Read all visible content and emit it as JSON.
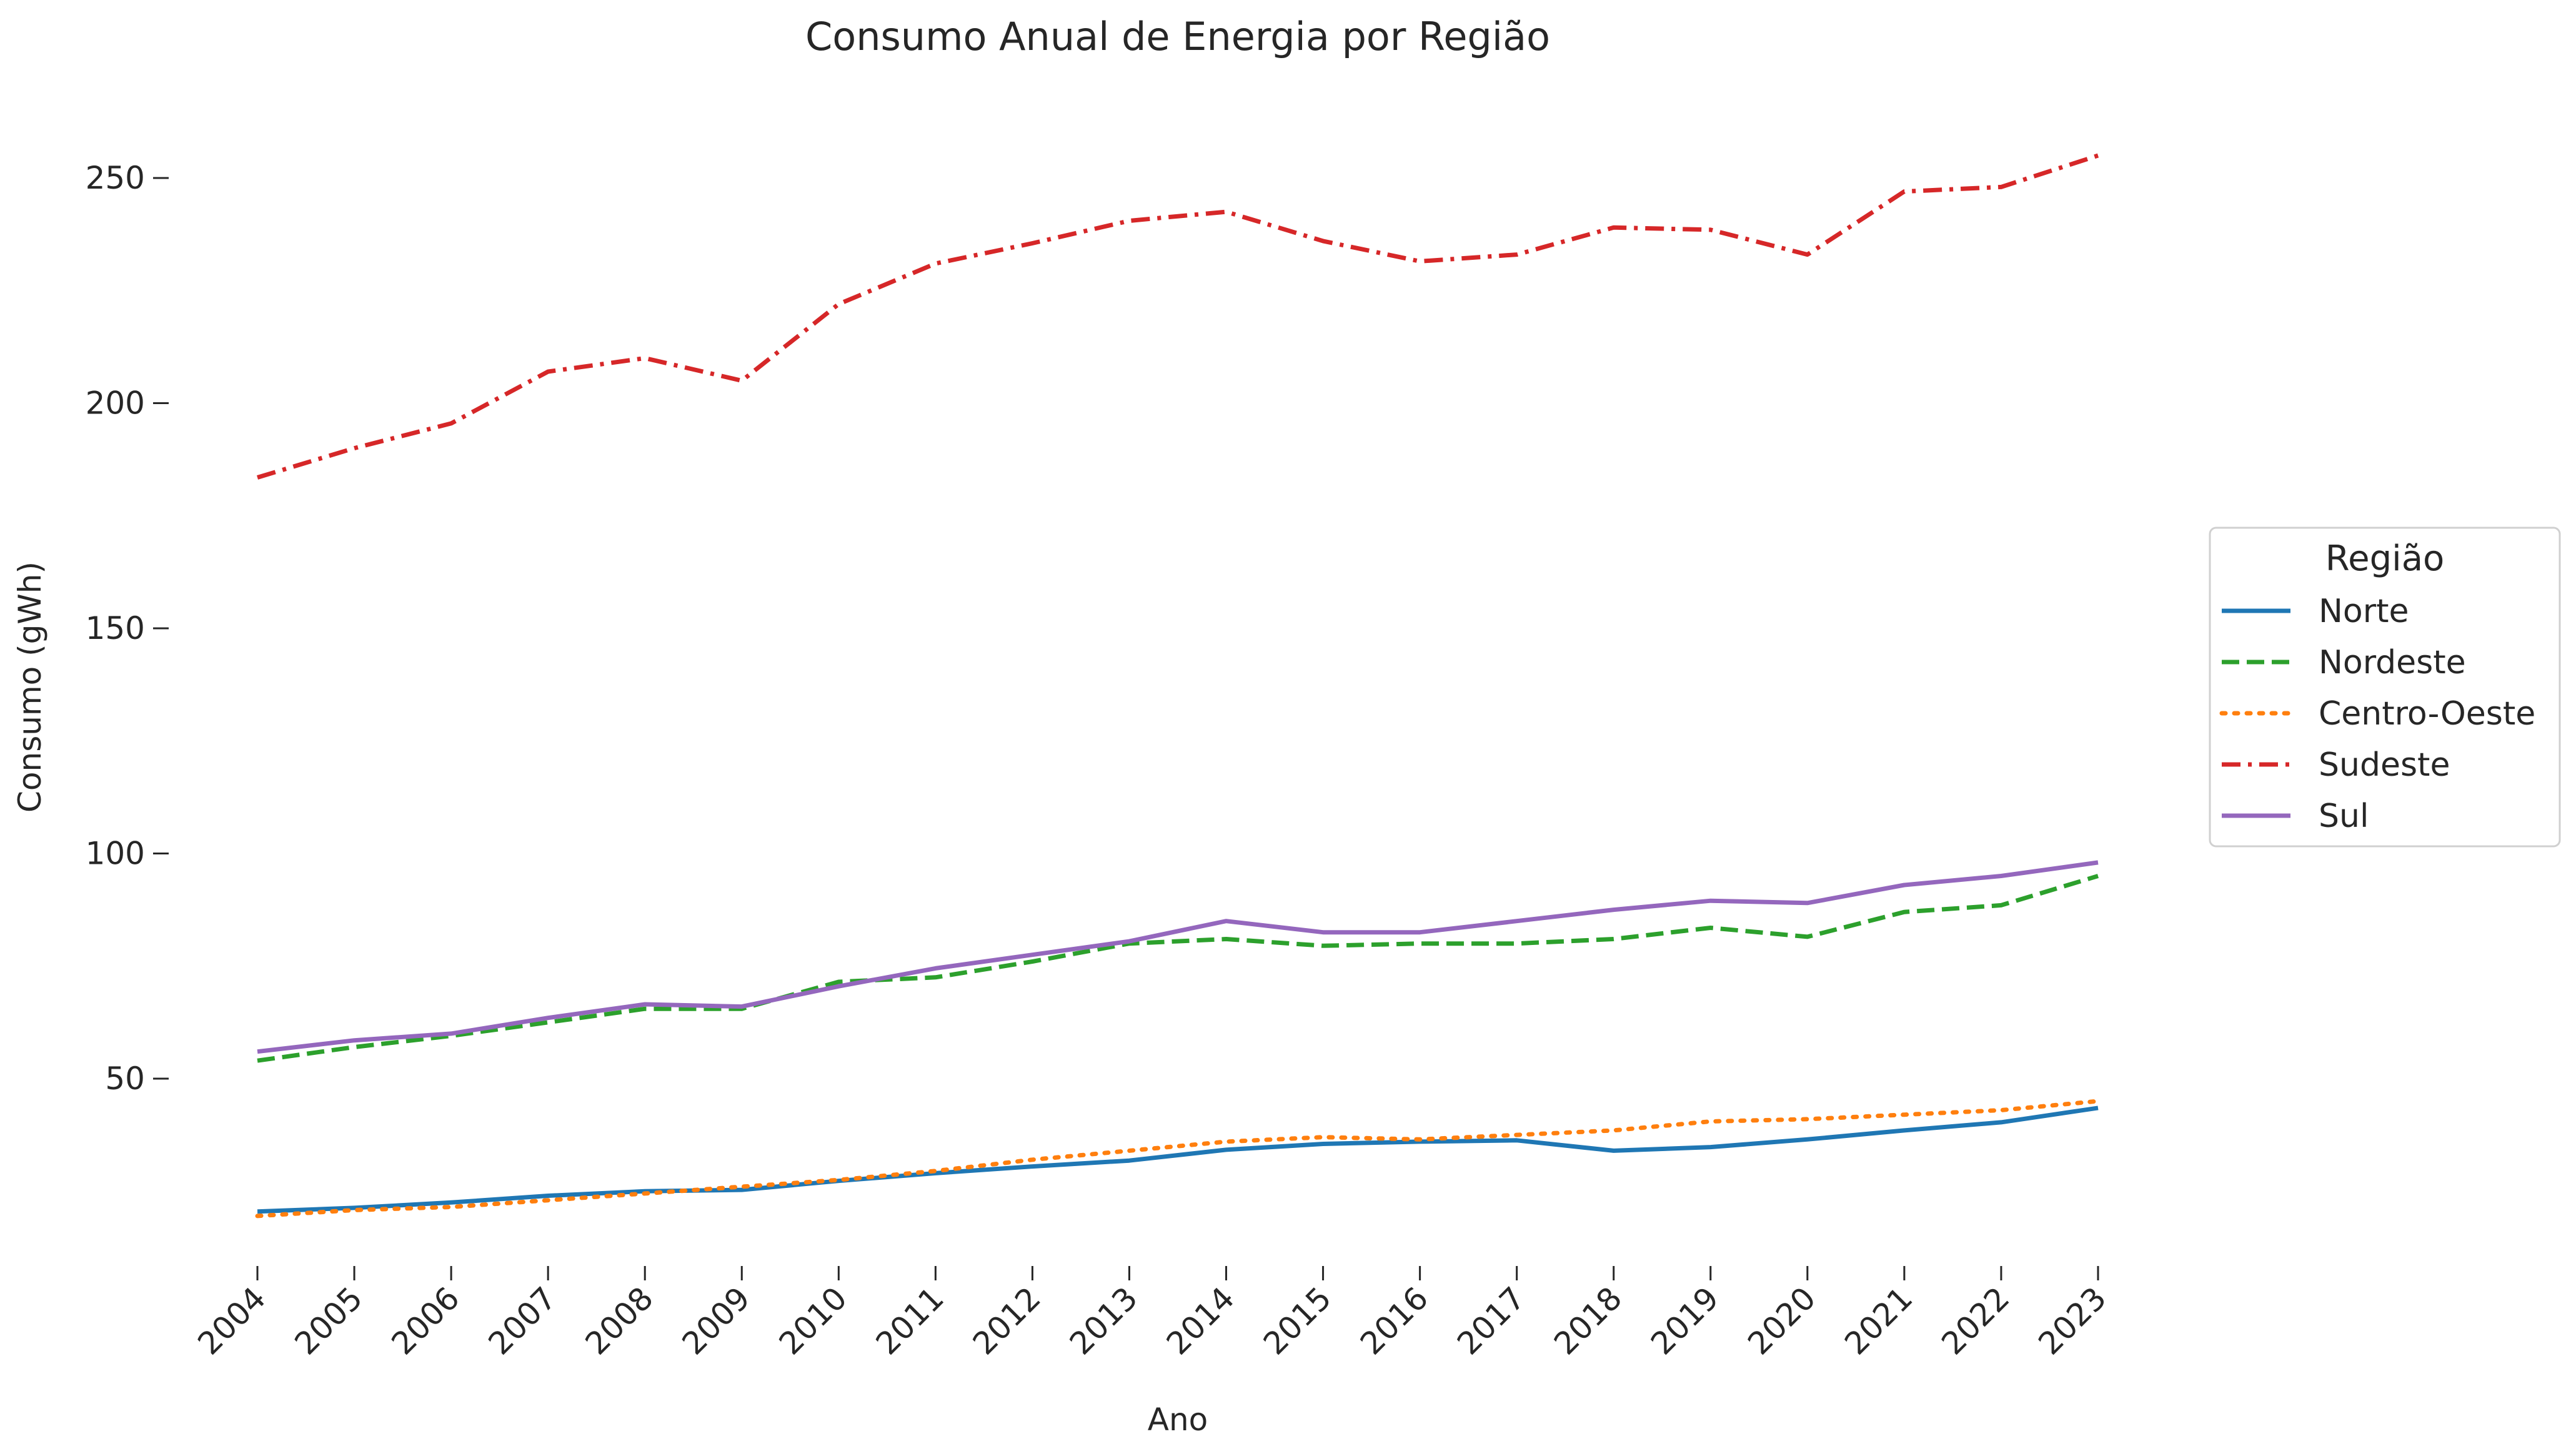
{
  "chart_data": {
    "type": "line",
    "title": "Consumo Anual de Energia por Região",
    "xlabel": "Ano",
    "ylabel": "Consumo (gWh)",
    "x": [
      "2004",
      "2005",
      "2006",
      "2007",
      "2008",
      "2009",
      "2010",
      "2011",
      "2012",
      "2013",
      "2014",
      "2015",
      "2016",
      "2017",
      "2018",
      "2019",
      "2020",
      "2021",
      "2022",
      "2023"
    ],
    "ylim": [
      7,
      267
    ],
    "yticks": [
      50,
      100,
      150,
      200,
      250
    ],
    "grid": false,
    "legend": {
      "title": "Região",
      "placement": "center-right"
    },
    "series": [
      {
        "name": "Norte",
        "color": "#1f77b4",
        "dash": "solid",
        "values": [
          20.5,
          21.3,
          22.5,
          24.0,
          25.0,
          25.3,
          27.3,
          29.0,
          30.5,
          31.8,
          34.2,
          35.5,
          36.0,
          36.3,
          34.0,
          34.8,
          36.5,
          38.5,
          40.3,
          43.5
        ]
      },
      {
        "name": "Nordeste",
        "color": "#2ca02c",
        "dash": "dashed",
        "values": [
          54.0,
          57.0,
          59.5,
          62.5,
          65.5,
          65.5,
          71.5,
          72.5,
          76.0,
          80.0,
          81.0,
          79.5,
          80.0,
          80.0,
          81.0,
          83.5,
          81.5,
          87.0,
          88.5,
          95.0
        ]
      },
      {
        "name": "Centro-Oeste",
        "color": "#ff7f0e",
        "dash": "dotted",
        "values": [
          19.5,
          20.8,
          21.5,
          23.0,
          24.5,
          26.0,
          27.5,
          29.5,
          32.0,
          34.0,
          36.0,
          37.0,
          36.5,
          37.5,
          38.5,
          40.5,
          41.0,
          42.0,
          43.0,
          45.0
        ]
      },
      {
        "name": "Sudeste",
        "color": "#d62728",
        "dash": "dashdot",
        "values": [
          183.5,
          190.0,
          195.5,
          207.0,
          210.0,
          205.0,
          222.0,
          231.0,
          235.5,
          240.5,
          242.5,
          236.0,
          231.5,
          233.0,
          239.0,
          238.5,
          233.0,
          247.0,
          248.0,
          255.0
        ]
      },
      {
        "name": "Sul",
        "color": "#9467bd",
        "dash": "solid",
        "values": [
          56.0,
          58.5,
          60.0,
          63.5,
          66.5,
          66.0,
          70.5,
          74.5,
          77.5,
          80.5,
          85.0,
          82.5,
          82.5,
          85.0,
          87.5,
          89.5,
          89.0,
          93.0,
          95.0,
          98.0
        ]
      }
    ]
  }
}
